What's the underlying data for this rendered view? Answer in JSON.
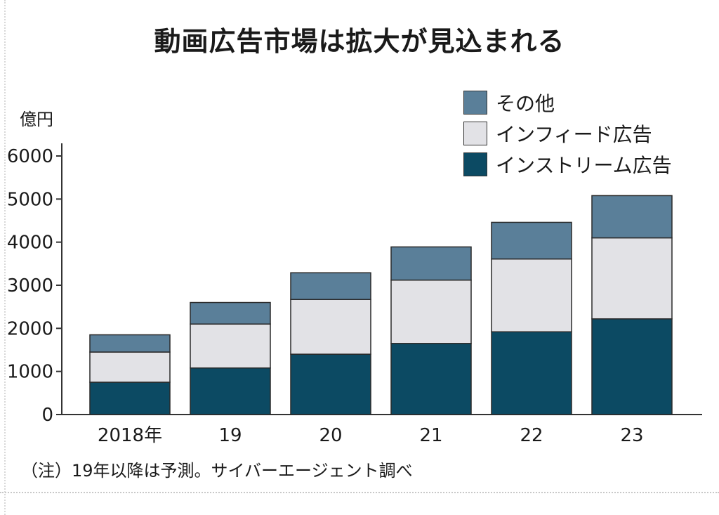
{
  "chart_data": {
    "type": "bar",
    "stacked": true,
    "title": "動画広告市場は拡大が見込まれる",
    "y_unit": "億円",
    "categories": [
      "2018年",
      "19",
      "20",
      "21",
      "22",
      "23"
    ],
    "series": [
      {
        "name": "インストリーム広告",
        "color": "#0c4a63",
        "values": [
          750,
          1080,
          1400,
          1650,
          1920,
          2220
        ]
      },
      {
        "name": "インフィード広告",
        "color": "#e2e2e6",
        "values": [
          700,
          1020,
          1270,
          1470,
          1690,
          1880
        ]
      },
      {
        "name": "その他",
        "color": "#5a7f99",
        "values": [
          400,
          500,
          620,
          770,
          850,
          980
        ]
      }
    ],
    "legend_order": [
      "その他",
      "インフィード広告",
      "インストリーム広告"
    ],
    "legend_position": "top-right",
    "ylim": [
      0,
      6000
    ],
    "yticks": [
      0,
      1000,
      2000,
      3000,
      4000,
      5000,
      6000
    ],
    "grid": false,
    "footnote": "（注）19年以降は予測。サイバーエージェント調べ"
  }
}
